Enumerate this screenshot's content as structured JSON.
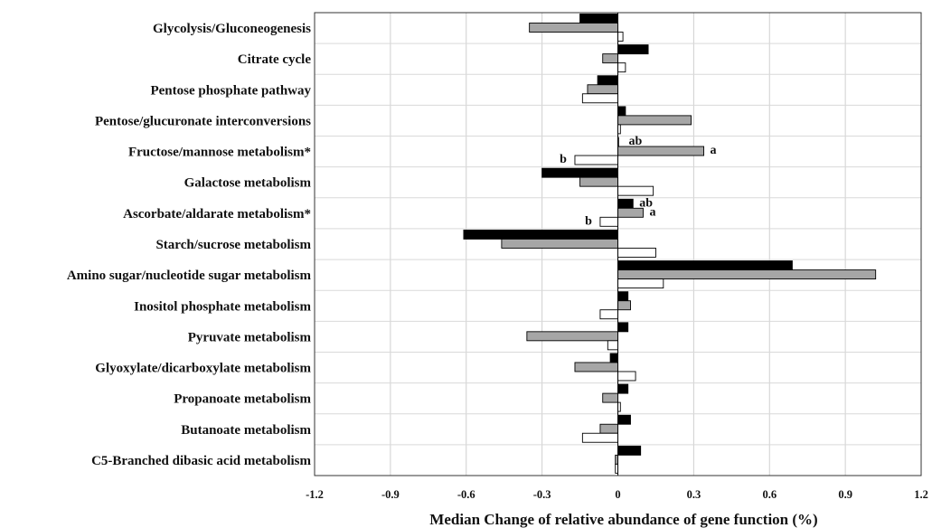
{
  "chart_data": {
    "type": "bar",
    "orientation": "horizontal",
    "title": "",
    "xlabel": "Median Change of relative abundance of gene function (%)",
    "ylabel": "",
    "xlim": [
      -1.2,
      1.2
    ],
    "xticks": [
      -1.2,
      -0.9,
      -0.6,
      -0.3,
      0,
      0.3,
      0.6,
      0.9,
      1.2
    ],
    "xtick_labels": [
      "-1.2",
      "-0.9",
      "-0.6",
      "-0.3",
      "0",
      "0.3",
      "0.6",
      "0.9",
      "1.2"
    ],
    "grid": "vertical",
    "legend": "none",
    "categories": [
      "Glycolysis/Gluconeogenesis",
      "Citrate cycle",
      "Pentose phosphate pathway",
      "Pentose/glucuronate interconversions",
      "Fructose/mannose metabolism*",
      "Galactose metabolism",
      "Ascorbate/aldarate metabolism*",
      "Starch/sucrose metabolism",
      "Amino sugar/nucleotide sugar metabolism",
      "Inositol phosphate metabolism",
      "Pyruvate metabolism",
      "Glyoxylate/dicarboxylate metabolism",
      "Propanoate metabolism",
      "Butanoate metabolism",
      "C5-Branched dibasic acid metabolism"
    ],
    "series": [
      {
        "color": "#000000",
        "values": [
          -0.15,
          0.12,
          -0.08,
          0.03,
          0.0,
          -0.3,
          0.06,
          -0.61,
          0.69,
          0.04,
          0.04,
          -0.03,
          0.04,
          0.05,
          0.09
        ]
      },
      {
        "color": "#a6a6a6",
        "values": [
          -0.35,
          -0.06,
          -0.12,
          0.29,
          0.34,
          -0.15,
          0.1,
          -0.46,
          1.02,
          0.05,
          -0.36,
          -0.17,
          -0.06,
          -0.07,
          -0.01
        ]
      },
      {
        "color": "#ffffff",
        "values": [
          0.02,
          0.03,
          -0.14,
          0.01,
          -0.17,
          0.14,
          -0.07,
          0.15,
          0.18,
          -0.07,
          -0.04,
          0.07,
          0.01,
          -0.14,
          -0.01
        ]
      }
    ],
    "annotations": [
      {
        "category_index": 4,
        "series_index": 0,
        "text": "ab"
      },
      {
        "category_index": 4,
        "series_index": 1,
        "text": "a"
      },
      {
        "category_index": 4,
        "series_index": 2,
        "text": "b"
      },
      {
        "category_index": 6,
        "series_index": 0,
        "text": "ab"
      },
      {
        "category_index": 6,
        "series_index": 1,
        "text": "a"
      },
      {
        "category_index": 6,
        "series_index": 2,
        "text": "b"
      }
    ]
  }
}
